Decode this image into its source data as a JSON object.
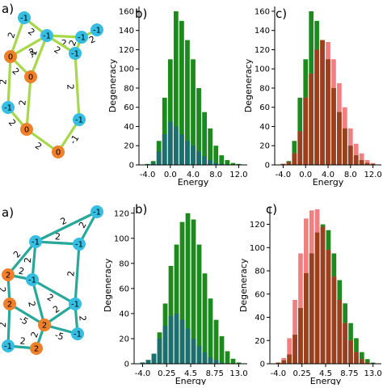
{
  "panel_labels": {
    "top_a": "a)",
    "top_b": "b)",
    "top_c": "c)",
    "bot_a": "a)",
    "bot_b": "b)",
    "bot_c": "c)"
  },
  "colors": {
    "green": "#1d8a1d",
    "teal": "#1d6f6f",
    "salmon": "#f08080",
    "brown": "#9b3f1e",
    "node_orange": "#f07f2a",
    "node_cyan": "#35bde2",
    "edge_lime": "#a6d84a",
    "edge_teal": "#28a89a"
  },
  "graph_top": {
    "nodes": [
      {
        "id": "n1",
        "label": "-1",
        "color": "cyan"
      },
      {
        "id": "n2",
        "label": "0",
        "color": "orange"
      },
      {
        "id": "n3",
        "label": "-1",
        "color": "cyan"
      },
      {
        "id": "n4",
        "label": "-1",
        "color": "cyan"
      },
      {
        "id": "n5",
        "label": "-1",
        "color": "cyan"
      },
      {
        "id": "n6",
        "label": "-1",
        "color": "cyan"
      },
      {
        "id": "n7",
        "label": "0",
        "color": "orange"
      },
      {
        "id": "n8",
        "label": "-1",
        "color": "cyan"
      },
      {
        "id": "n9",
        "label": "0",
        "color": "orange"
      },
      {
        "id": "n10",
        "label": "0",
        "color": "orange"
      },
      {
        "id": "n11",
        "label": "-1",
        "color": "cyan"
      }
    ],
    "edge_labels": [
      "2",
      "2",
      "2",
      "2",
      "2",
      "2",
      "-1",
      "2",
      "2",
      "2",
      "2",
      "-1",
      "2",
      "2",
      "2"
    ]
  },
  "graph_bottom": {
    "nodes": [
      {
        "id": "m1",
        "label": "-1",
        "color": "cyan"
      },
      {
        "id": "m2",
        "label": "-1",
        "color": "cyan"
      },
      {
        "id": "m3",
        "label": "-1",
        "color": "cyan"
      },
      {
        "id": "m4",
        "label": "-1",
        "color": "cyan"
      },
      {
        "id": "m5",
        "label": "2",
        "color": "orange"
      },
      {
        "id": "m6",
        "label": "2",
        "color": "orange"
      },
      {
        "id": "m7",
        "label": "-1",
        "color": "cyan"
      },
      {
        "id": "m8",
        "label": "2",
        "color": "orange"
      },
      {
        "id": "m9",
        "label": "-1",
        "color": "cyan"
      },
      {
        "id": "m10",
        "label": "2",
        "color": "orange"
      },
      {
        "id": "m11",
        "label": "-1",
        "color": "cyan"
      }
    ],
    "edge_labels": [
      "2",
      "2",
      "2",
      "2",
      "2",
      "2",
      "-5",
      "2",
      "2",
      "-5",
      "2",
      "2",
      "2",
      "2",
      "2",
      "2",
      "2"
    ]
  },
  "chart_data": [
    {
      "panel": "top-b",
      "type": "bar",
      "xlabel": "Energy",
      "ylabel": "Degeneracy",
      "xlim": [
        -5.5,
        13.5
      ],
      "ylim": [
        0,
        165
      ],
      "xticks": [
        -4,
        0,
        4,
        8,
        12
      ],
      "xtick_labels": [
        "-4.0",
        "0.0",
        "4.0",
        "8.0",
        "12.0"
      ],
      "yticks": [
        0,
        20,
        40,
        60,
        80,
        100,
        120,
        140,
        160
      ],
      "x": [
        -4,
        -3,
        -2,
        -1,
        0,
        1,
        2,
        3,
        4,
        5,
        6,
        7,
        8,
        9,
        10,
        11,
        12
      ],
      "series": [
        {
          "color": "green",
          "values": [
            1,
            4,
            25,
            70,
            110,
            160,
            150,
            130,
            110,
            80,
            55,
            38,
            20,
            10,
            5,
            2,
            1
          ]
        },
        {
          "color": "teal",
          "values": [
            0,
            2,
            14,
            32,
            45,
            40,
            32,
            25,
            20,
            14,
            9,
            5,
            2,
            1,
            0,
            0,
            0
          ]
        }
      ]
    },
    {
      "panel": "top-c",
      "type": "bar",
      "xlabel": "Energy",
      "ylabel": "Degeneracy",
      "xlim": [
        -5.5,
        13.5
      ],
      "ylim": [
        0,
        165
      ],
      "xticks": [
        -4,
        0,
        4,
        8,
        12
      ],
      "xtick_labels": [
        "-4.0",
        "0.0",
        "4.0",
        "8.0",
        "12.0"
      ],
      "yticks": [
        0,
        20,
        40,
        60,
        80,
        100,
        120,
        140,
        160
      ],
      "x": [
        -4,
        -3,
        -2,
        -1,
        0,
        1,
        2,
        3,
        4,
        5,
        6,
        7,
        8,
        9,
        10,
        11,
        12
      ],
      "series": [
        {
          "color": "green",
          "values": [
            1,
            4,
            25,
            70,
            110,
            160,
            150,
            130,
            110,
            80,
            55,
            38,
            20,
            10,
            5,
            2,
            1
          ]
        },
        {
          "color": "salmon",
          "values": [
            1,
            3,
            12,
            35,
            70,
            95,
            120,
            130,
            128,
            110,
            85,
            60,
            38,
            22,
            12,
            5,
            2
          ]
        }
      ]
    },
    {
      "panel": "bottom-b",
      "type": "bar",
      "xlabel": "Energy",
      "ylabel": "Degeneracy",
      "xlim": [
        -5.5,
        14.5
      ],
      "ylim": [
        0,
        125
      ],
      "xticks": [
        -4,
        0.25,
        4.5,
        8.75,
        13
      ],
      "xtick_labels": [
        "-4.0",
        "0.25",
        "4.5",
        "8.75",
        "13.0"
      ],
      "yticks": [
        0,
        20,
        40,
        60,
        80,
        100,
        120
      ],
      "x": [
        -4,
        -3,
        -2,
        -1,
        0,
        1,
        2,
        3,
        4,
        5,
        6,
        7,
        8,
        9,
        10,
        11,
        12,
        13
      ],
      "series": [
        {
          "color": "green",
          "values": [
            1,
            3,
            8,
            25,
            48,
            78,
            95,
            113,
            120,
            115,
            95,
            72,
            52,
            35,
            22,
            10,
            4,
            1
          ]
        },
        {
          "color": "teal",
          "values": [
            1,
            3,
            8,
            20,
            30,
            38,
            40,
            35,
            28,
            20,
            14,
            9,
            5,
            3,
            1,
            0,
            0,
            0
          ]
        }
      ]
    },
    {
      "panel": "bottom-c",
      "type": "bar",
      "xlabel": "Energy",
      "ylabel": "Degeneracy",
      "xlim": [
        -5.5,
        14.5
      ],
      "ylim": [
        0,
        135
      ],
      "xticks": [
        -4,
        0.25,
        4.5,
        8.75,
        13
      ],
      "xtick_labels": [
        "-4.0",
        "0.25",
        "4.5",
        "8.75",
        "13.0"
      ],
      "yticks": [
        0,
        20,
        40,
        60,
        80,
        100,
        120
      ],
      "x": [
        -4,
        -3,
        -2,
        -1,
        0,
        1,
        2,
        3,
        4,
        5,
        6,
        7,
        8,
        9,
        10,
        11,
        12,
        13
      ],
      "series": [
        {
          "color": "green",
          "values": [
            1,
            3,
            8,
            25,
            48,
            78,
            95,
            113,
            120,
            115,
            95,
            72,
            52,
            35,
            22,
            10,
            4,
            1
          ]
        },
        {
          "color": "salmon",
          "values": [
            1,
            5,
            22,
            55,
            95,
            125,
            132,
            133,
            118,
            98,
            75,
            55,
            35,
            20,
            10,
            4,
            1,
            0
          ]
        }
      ]
    }
  ]
}
